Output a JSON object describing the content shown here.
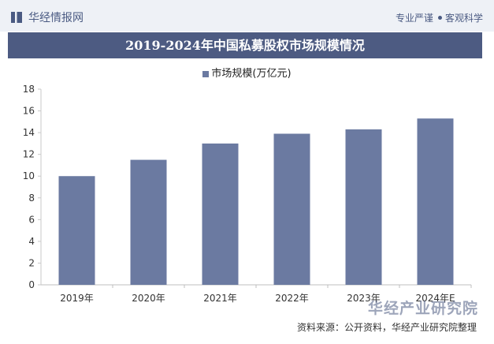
{
  "header": {
    "brand": "华经情报网",
    "slogan_left": "专业严谨",
    "slogan_right": "客观科学"
  },
  "title": "2019-2024年中国私募股权市场规模情况",
  "footer": {
    "source": "资料来源：公开资料，华经产业研究院整理",
    "watermark": "华经产业研究院"
  },
  "colors": {
    "bar": "#6b7aa1",
    "title_bg": "#4d5b82",
    "brand": "#4a5a82"
  },
  "chart_data": {
    "type": "bar",
    "categories": [
      "2019年",
      "2020年",
      "2021年",
      "2022年",
      "2023年",
      "2024年E"
    ],
    "series": [
      {
        "name": "市场规模(万亿元)",
        "values": [
          10.0,
          11.5,
          13.0,
          13.9,
          14.3,
          15.3
        ]
      }
    ],
    "ylim": [
      0,
      18
    ],
    "yticks": [
      "0",
      "2",
      "4",
      "6",
      "8",
      "10",
      "12",
      "14",
      "16",
      "18"
    ],
    "grid": false,
    "legend_position": "top-center"
  }
}
